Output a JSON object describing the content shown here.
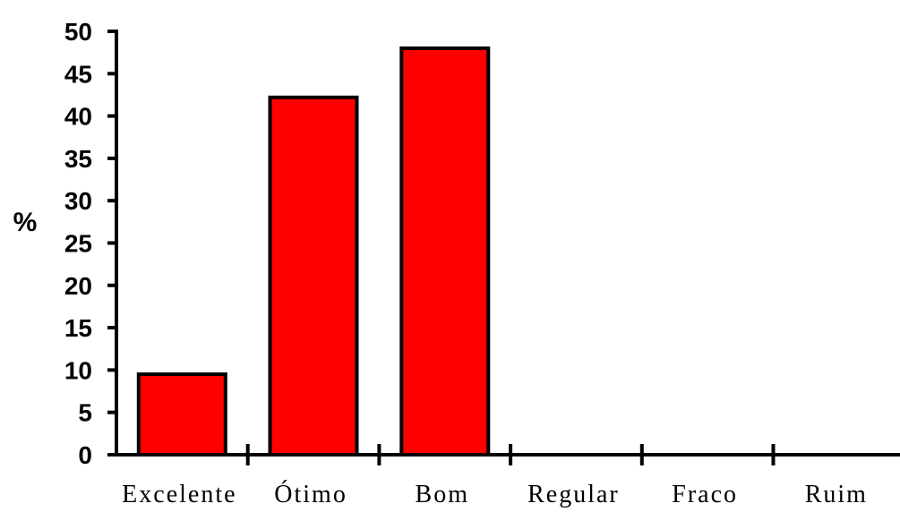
{
  "chart_data": {
    "type": "bar",
    "categories": [
      "Excelente",
      "Ótimo",
      "Bom",
      "Regular",
      "Fraco",
      "Ruim"
    ],
    "values": [
      9.5,
      42.2,
      48,
      0,
      0,
      0
    ],
    "ylabel": "%",
    "xlabel": "",
    "title": "",
    "ylim": [
      0,
      50
    ],
    "yticks": [
      "0",
      "5",
      "10",
      "15",
      "20",
      "25",
      "30",
      "35",
      "40",
      "45",
      "50"
    ],
    "grid": false,
    "legend": "none",
    "bar_color": "#ff0000",
    "edge_color": "#000000"
  }
}
